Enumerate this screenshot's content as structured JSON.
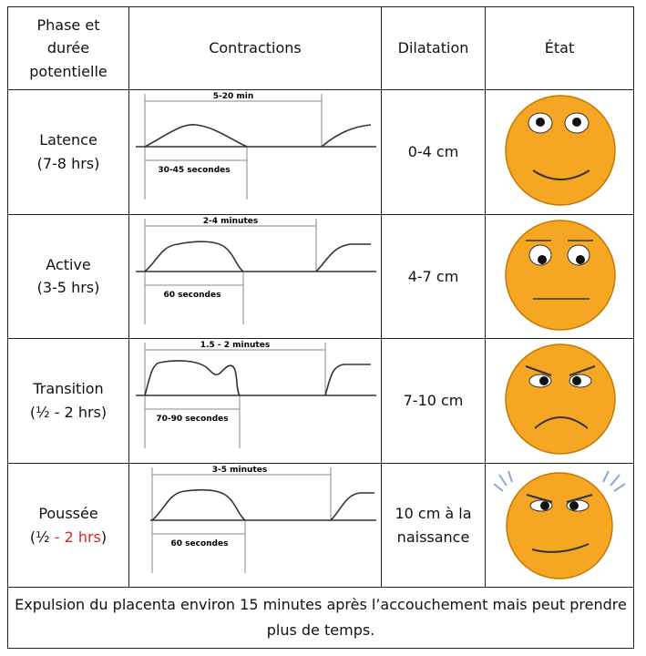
{
  "table": {
    "header": [
      "Phase et durée potentielle",
      "Contractions",
      "Dilatation",
      "État"
    ],
    "rows": [
      {
        "phase": "Latence",
        "duration": [
          "(7-8 hrs)"
        ],
        "interval": "5-20 min",
        "length": "30-45 secondes",
        "dilatation": "0-4 cm"
      },
      {
        "phase": "Active",
        "duration": [
          "(3-5 hrs)"
        ],
        "interval": "2-4 minutes",
        "length": "60 secondes",
        "dilatation": "4-7 cm"
      },
      {
        "phase": "Transition",
        "duration": [
          "(½ - 2 hrs)"
        ],
        "interval": "1.5 - 2 minutes",
        "length": "70-90 secondes",
        "dilatation": "7-10 cm"
      },
      {
        "phase": "Poussée",
        "duration": [
          "(½ ",
          "- 2 hrs",
          ")"
        ],
        "interval": "3-5 minutes",
        "length": "60 secondes",
        "dilatation": "10 cm à la naissance"
      }
    ],
    "footer": "Expulsion du placenta environ 15 minutes après l’accouchement mais peut prendre plus de temps."
  }
}
